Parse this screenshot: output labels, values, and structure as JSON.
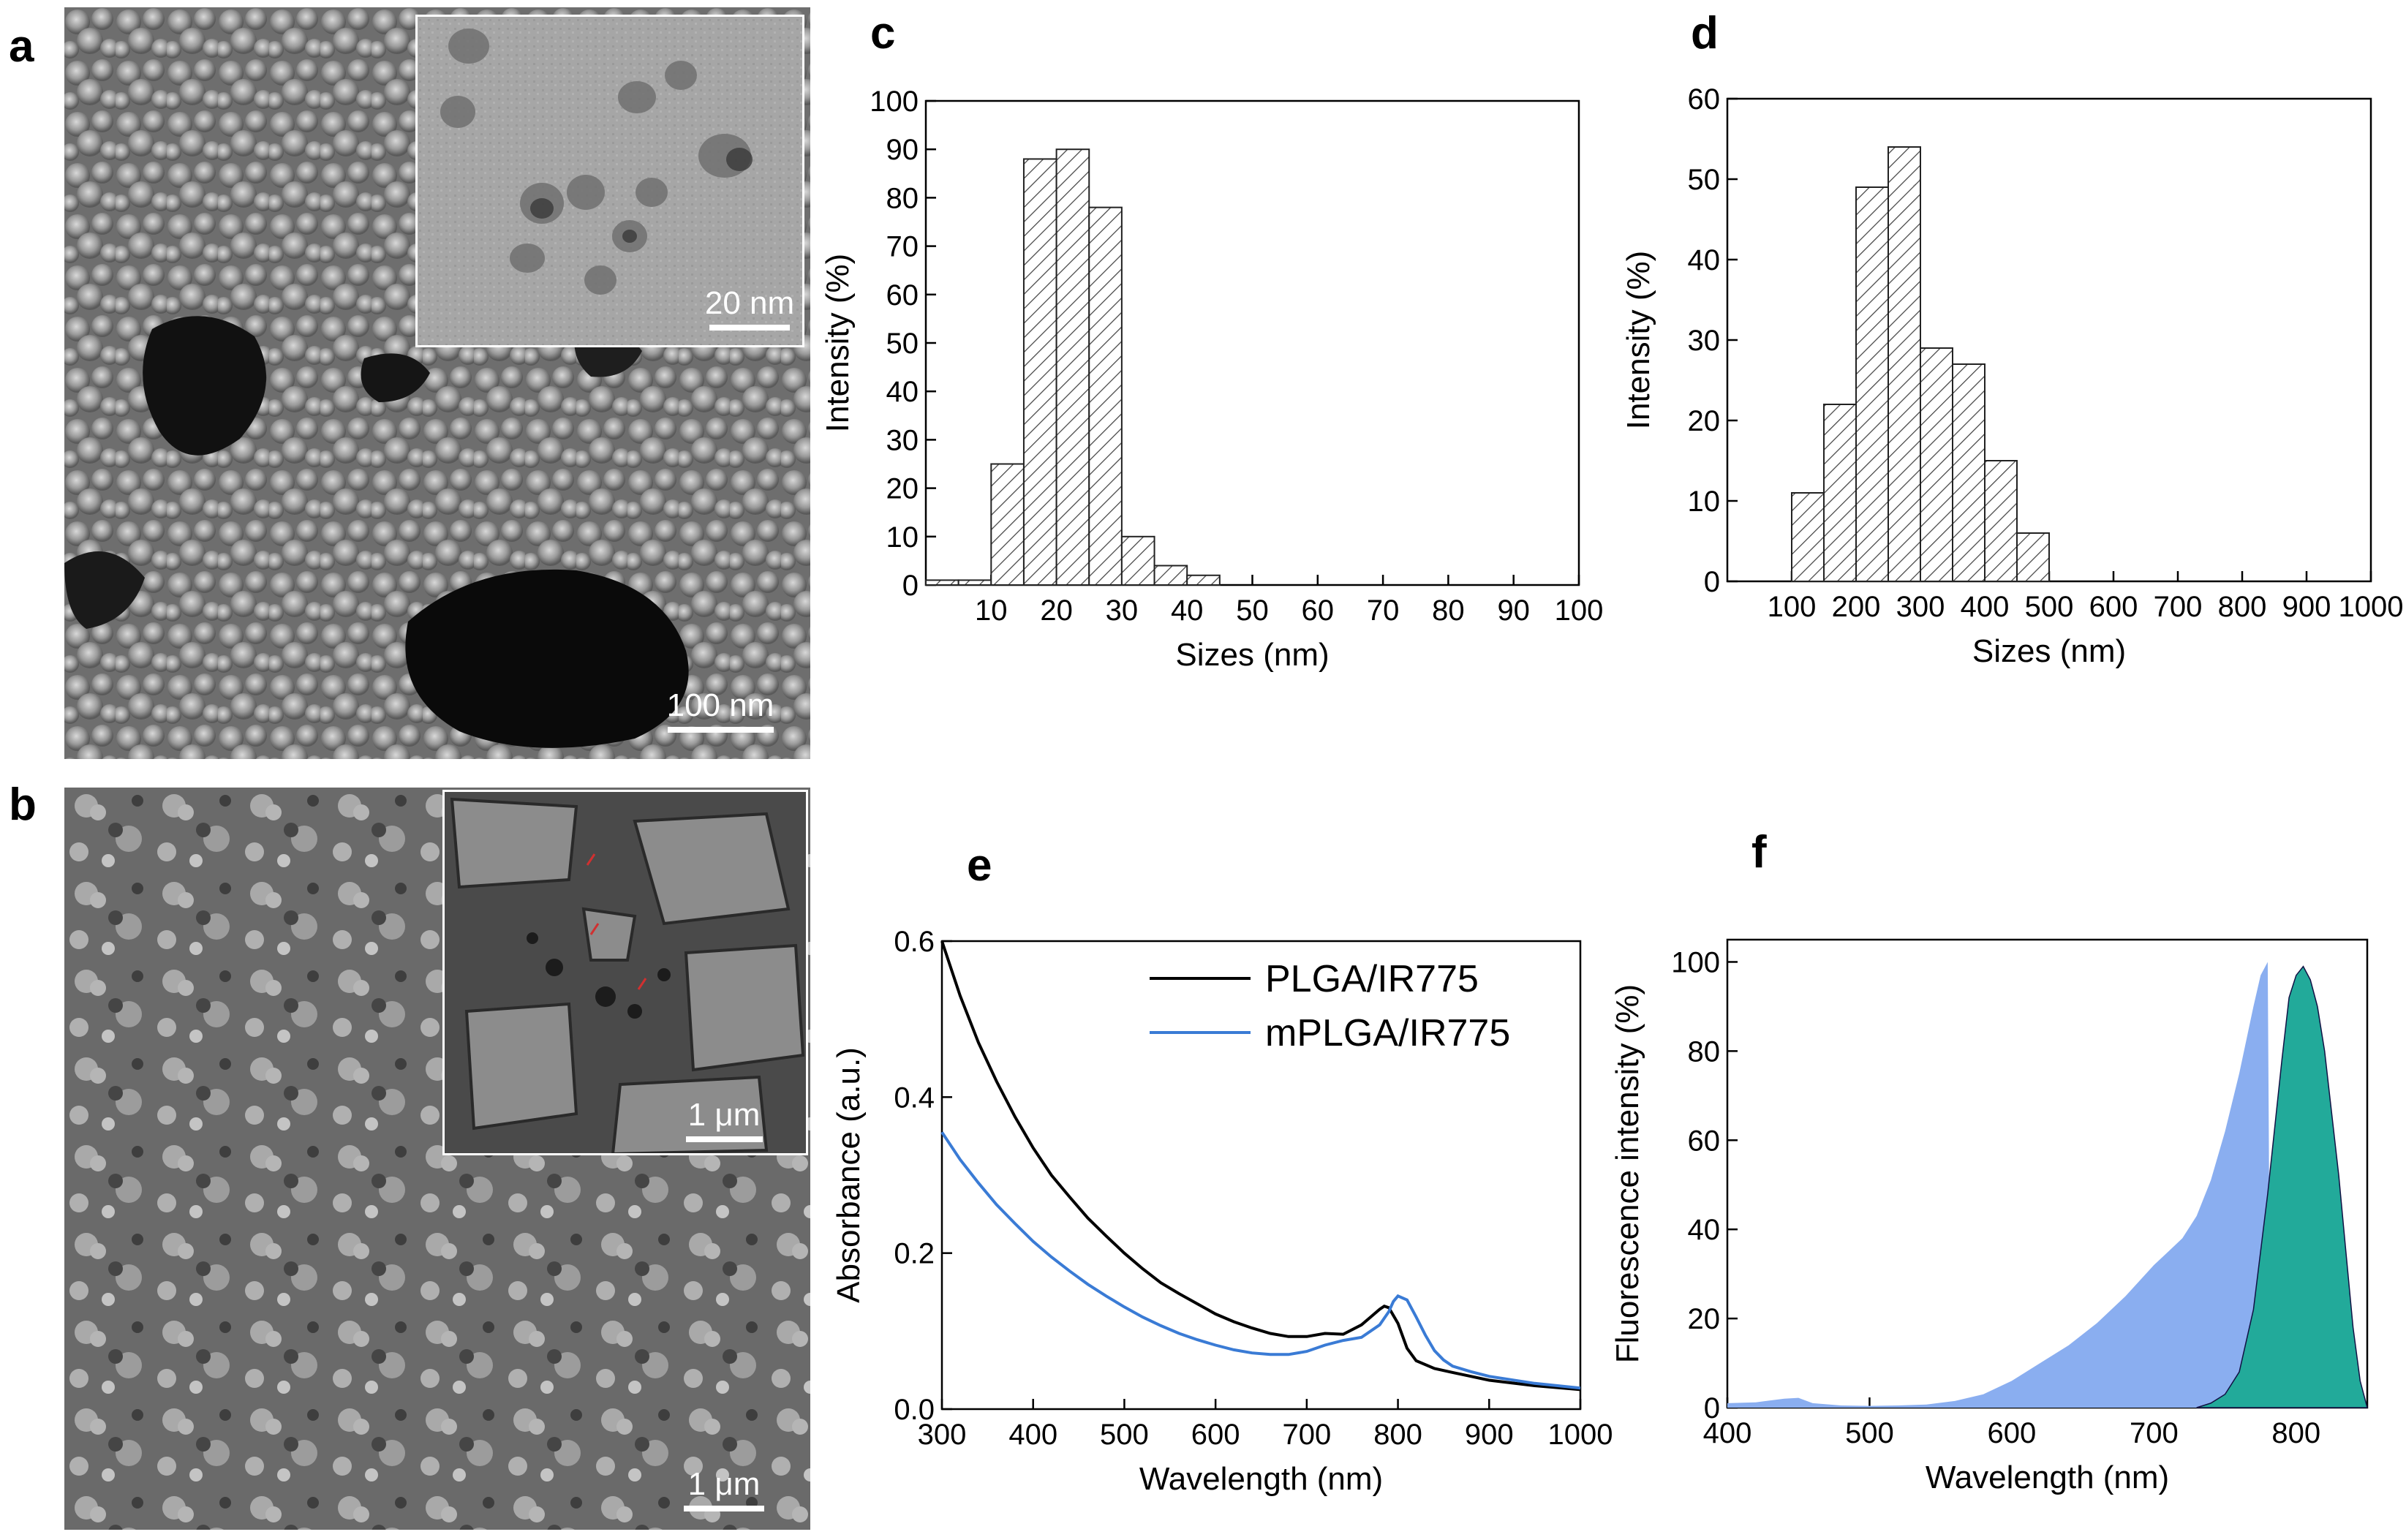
{
  "figure": {
    "panels": {
      "a": {
        "letter": "a",
        "scalebar": "100 nm",
        "inset_scalebar": "20 nm"
      },
      "b": {
        "letter": "b",
        "scalebar": "1 μm",
        "inset_scalebar": "1 μm"
      },
      "c": {
        "letter": "c"
      },
      "d": {
        "letter": "d"
      },
      "e": {
        "letter": "e"
      },
      "f": {
        "letter": "f"
      }
    }
  },
  "chart_data": [
    {
      "panel": "c",
      "type": "bar",
      "xlabel": "Sizes (nm)",
      "ylabel": "Intensity (%)",
      "xlim": [
        0,
        100
      ],
      "ylim": [
        0,
        100
      ],
      "xticks": [
        10,
        20,
        30,
        40,
        50,
        60,
        70,
        80,
        90,
        100
      ],
      "yticks": [
        0,
        10,
        20,
        30,
        40,
        50,
        60,
        70,
        80,
        90,
        100
      ],
      "bin_width": 5,
      "bins": [
        {
          "start": 0,
          "end": 5,
          "value": 1
        },
        {
          "start": 5,
          "end": 10,
          "value": 1
        },
        {
          "start": 10,
          "end": 15,
          "value": 25
        },
        {
          "start": 15,
          "end": 20,
          "value": 88
        },
        {
          "start": 20,
          "end": 25,
          "value": 90
        },
        {
          "start": 25,
          "end": 30,
          "value": 78
        },
        {
          "start": 30,
          "end": 35,
          "value": 10
        },
        {
          "start": 35,
          "end": 40,
          "value": 4
        },
        {
          "start": 40,
          "end": 45,
          "value": 2
        }
      ],
      "grid": false,
      "fill": "hatched"
    },
    {
      "panel": "d",
      "type": "bar",
      "xlabel": "Sizes (nm)",
      "ylabel": "Intensity (%)",
      "xlim": [
        0,
        1000
      ],
      "ylim": [
        0,
        60
      ],
      "xticks": [
        100,
        200,
        300,
        400,
        500,
        600,
        700,
        800,
        900,
        1000
      ],
      "yticks": [
        0,
        10,
        20,
        30,
        40,
        50,
        60
      ],
      "bin_width": 50,
      "bins": [
        {
          "start": 100,
          "end": 150,
          "value": 11
        },
        {
          "start": 150,
          "end": 200,
          "value": 22
        },
        {
          "start": 200,
          "end": 250,
          "value": 49
        },
        {
          "start": 250,
          "end": 300,
          "value": 54
        },
        {
          "start": 300,
          "end": 350,
          "value": 29
        },
        {
          "start": 350,
          "end": 400,
          "value": 27
        },
        {
          "start": 400,
          "end": 450,
          "value": 15
        },
        {
          "start": 450,
          "end": 500,
          "value": 6
        }
      ],
      "grid": false,
      "fill": "hatched"
    },
    {
      "panel": "e",
      "type": "line",
      "xlabel": "Wavelength (nm)",
      "ylabel": "Absorbance (a.u.)",
      "xlim": [
        300,
        1000
      ],
      "ylim": [
        0,
        0.6
      ],
      "xticks": [
        300,
        400,
        500,
        600,
        700,
        800,
        900,
        1000
      ],
      "yticks": [
        0.0,
        0.2,
        0.4,
        0.6
      ],
      "ytick_labels": [
        "0.0",
        "0.2",
        "0.4",
        "0.6"
      ],
      "legend_position": "top-right",
      "series": [
        {
          "name": "PLGA/IR775",
          "color": "#000000",
          "x": [
            300,
            320,
            340,
            360,
            380,
            400,
            420,
            440,
            460,
            480,
            500,
            520,
            540,
            560,
            580,
            600,
            620,
            640,
            660,
            680,
            700,
            720,
            740,
            760,
            770,
            780,
            785,
            790,
            800,
            810,
            820,
            840,
            860,
            880,
            900,
            950,
            1000
          ],
          "y": [
            0.6,
            0.53,
            0.47,
            0.42,
            0.375,
            0.335,
            0.3,
            0.272,
            0.245,
            0.222,
            0.2,
            0.18,
            0.162,
            0.148,
            0.135,
            0.122,
            0.112,
            0.104,
            0.097,
            0.093,
            0.093,
            0.097,
            0.096,
            0.108,
            0.118,
            0.128,
            0.132,
            0.13,
            0.11,
            0.078,
            0.062,
            0.052,
            0.047,
            0.042,
            0.037,
            0.03,
            0.025
          ]
        },
        {
          "name": "mPLGA/IR775",
          "color": "#3a7bd5",
          "x": [
            300,
            320,
            340,
            360,
            380,
            400,
            420,
            440,
            460,
            480,
            500,
            520,
            540,
            560,
            580,
            600,
            620,
            640,
            660,
            680,
            700,
            720,
            740,
            760,
            780,
            790,
            795,
            800,
            810,
            820,
            830,
            840,
            850,
            860,
            880,
            900,
            950,
            1000
          ],
          "y": [
            0.355,
            0.32,
            0.29,
            0.262,
            0.238,
            0.215,
            0.195,
            0.177,
            0.16,
            0.145,
            0.131,
            0.118,
            0.107,
            0.097,
            0.089,
            0.082,
            0.076,
            0.072,
            0.07,
            0.07,
            0.074,
            0.082,
            0.088,
            0.092,
            0.108,
            0.125,
            0.138,
            0.145,
            0.14,
            0.118,
            0.095,
            0.075,
            0.063,
            0.055,
            0.048,
            0.042,
            0.033,
            0.027
          ]
        }
      ],
      "grid": false
    },
    {
      "panel": "f",
      "type": "area",
      "xlabel": "Wavelength (nm)",
      "ylabel": "Fluorescence intensity (%)",
      "xlim": [
        400,
        850
      ],
      "ylim": [
        0,
        105
      ],
      "xticks": [
        400,
        500,
        600,
        700,
        800
      ],
      "yticks": [
        0,
        20,
        40,
        60,
        80,
        100
      ],
      "series": [
        {
          "color": "#8aaef0",
          "x": [
            400,
            420,
            440,
            450,
            460,
            480,
            500,
            520,
            540,
            560,
            580,
            600,
            620,
            640,
            660,
            680,
            700,
            710,
            720,
            730,
            740,
            750,
            760,
            770,
            775,
            780,
            782
          ],
          "y": [
            1,
            1.2,
            2,
            2.2,
            1,
            0.5,
            0.4,
            0.5,
            0.7,
            1.5,
            3,
            6,
            10,
            14,
            19,
            25,
            32,
            35,
            38,
            43,
            51,
            62,
            75,
            90,
            97,
            100,
            0
          ]
        },
        {
          "color": "#22aa9a",
          "x": [
            730,
            740,
            750,
            760,
            770,
            780,
            790,
            795,
            800,
            805,
            810,
            815,
            820,
            825,
            830,
            835,
            840,
            845,
            850
          ],
          "y": [
            0,
            1,
            3,
            8,
            22,
            48,
            78,
            92,
            97,
            99,
            96,
            90,
            80,
            66,
            52,
            35,
            18,
            6,
            0
          ]
        }
      ],
      "grid": false
    }
  ]
}
